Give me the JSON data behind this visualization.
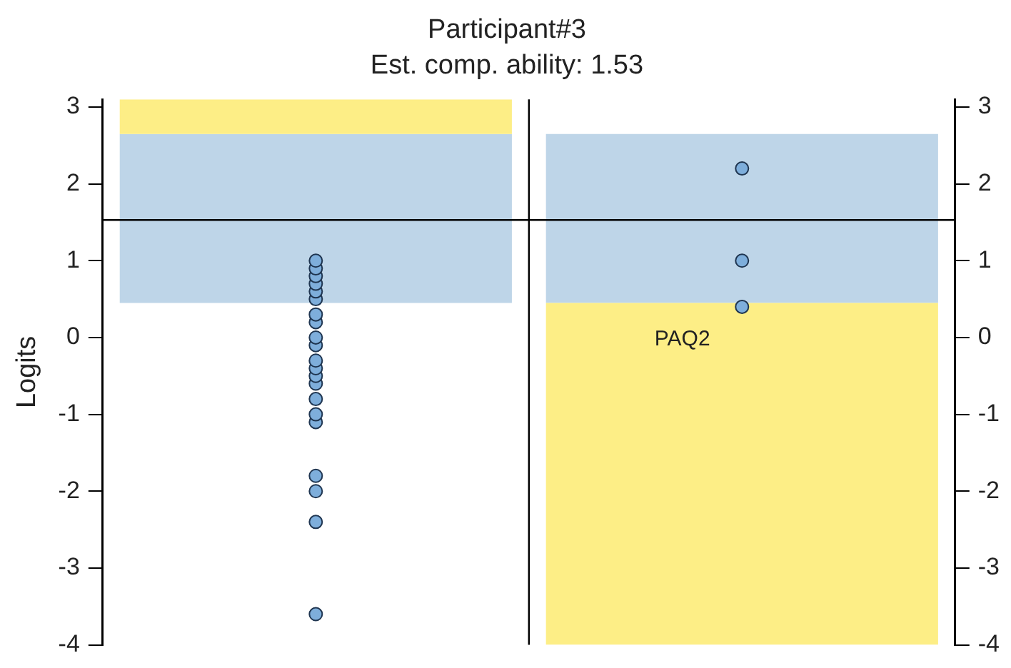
{
  "chart_data": {
    "type": "scatter",
    "title": "Participant#3",
    "subtitle": "Est. comp. ability: 1.53",
    "ylabel": "Logits",
    "categories": [
      null,
      null
    ],
    "ylim": [
      -4,
      3.1
    ],
    "yticks": [
      -4,
      -3,
      -2,
      -1,
      0,
      1,
      2,
      3
    ],
    "y2lim": [
      -4,
      3.1
    ],
    "y2ticks": [
      -4,
      -3,
      -2,
      -1,
      0,
      1,
      2,
      3
    ],
    "tick_labels": "y",
    "grid": false,
    "legend": false,
    "marker": "circle",
    "ref_lines": [
      {
        "axis": "y",
        "value": 1.53,
        "color": "#000000"
      }
    ],
    "annotations": [
      "PAQ2"
    ],
    "series": [
      {
        "type": "bar",
        "color": "#fdee86",
        "base": [
          2.65,
          -4
        ],
        "values": [
          0.45,
          4.45
        ]
      },
      {
        "type": "bar",
        "color": "#bed5e8",
        "base": [
          0.45,
          0.45
        ],
        "values": [
          2.2,
          2.2
        ]
      },
      {
        "color": "#7eaedb",
        "values": [
          1.0,
          2.2
        ]
      },
      {
        "color": "#7eaedb",
        "values": [
          0.9,
          1.0
        ]
      },
      {
        "color": "#7eaedb",
        "values": [
          0.8,
          0.4
        ]
      },
      {
        "color": "#7eaedb",
        "values": [
          0.7,
          null
        ]
      },
      {
        "color": "#7eaedb",
        "values": [
          0.6,
          null
        ]
      },
      {
        "color": "#7eaedb",
        "values": [
          0.5,
          null
        ]
      },
      {
        "color": "#7eaedb",
        "values": [
          0.3,
          null
        ]
      },
      {
        "color": "#7eaedb",
        "values": [
          0.2,
          null
        ]
      },
      {
        "color": "#7eaedb",
        "values": [
          0.0,
          null
        ]
      },
      {
        "color": "#7eaedb",
        "values": [
          -0.1,
          null
        ]
      },
      {
        "color": "#7eaedb",
        "values": [
          -0.3,
          null
        ]
      },
      {
        "color": "#7eaedb",
        "values": [
          -0.4,
          null
        ]
      },
      {
        "color": "#7eaedb",
        "values": [
          -0.5,
          null
        ]
      },
      {
        "color": "#7eaedb",
        "values": [
          -0.6,
          null
        ]
      },
      {
        "color": "#7eaedb",
        "values": [
          -0.8,
          null
        ]
      },
      {
        "color": "#7eaedb",
        "values": [
          -1.0,
          null
        ]
      },
      {
        "color": "#7eaedb",
        "values": [
          -1.1,
          null
        ]
      },
      {
        "color": "#7eaedb",
        "values": [
          -1.8,
          null
        ]
      },
      {
        "color": "#7eaedb",
        "values": [
          -2.0,
          null
        ]
      },
      {
        "color": "#7eaedb",
        "values": [
          -2.4,
          null
        ]
      },
      {
        "color": "#7eaedb",
        "values": [
          -3.6,
          null
        ]
      }
    ]
  }
}
